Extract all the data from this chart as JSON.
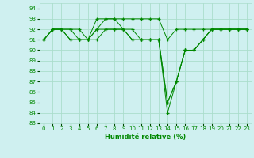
{
  "xlabel": "Humidité relative (%)",
  "bg_color": "#cff0f0",
  "grid_color": "#aaddcc",
  "line_color": "#008800",
  "xlim": [
    -0.5,
    23.5
  ],
  "ylim": [
    83,
    94.5
  ],
  "yticks": [
    83,
    84,
    85,
    86,
    87,
    88,
    89,
    90,
    91,
    92,
    93,
    94
  ],
  "xticks": [
    0,
    1,
    2,
    3,
    4,
    5,
    6,
    7,
    8,
    9,
    10,
    11,
    12,
    13,
    14,
    15,
    16,
    17,
    18,
    19,
    20,
    21,
    22,
    23
  ],
  "series": [
    [
      91,
      92,
      92,
      92,
      92,
      91,
      93,
      93,
      93,
      93,
      93,
      93,
      93,
      93,
      91,
      92,
      92,
      92,
      92,
      92,
      92,
      92,
      92,
      92
    ],
    [
      91,
      92,
      92,
      92,
      91,
      91,
      92,
      92,
      92,
      92,
      91,
      91,
      91,
      91,
      85,
      87,
      90,
      90,
      91,
      92,
      92,
      92,
      92,
      92
    ],
    [
      91,
      92,
      92,
      91,
      91,
      91,
      92,
      93,
      93,
      92,
      92,
      91,
      91,
      91,
      84,
      87,
      90,
      90,
      91,
      92,
      92,
      92,
      92,
      92
    ],
    [
      91,
      92,
      92,
      91,
      91,
      91,
      91,
      92,
      92,
      92,
      91,
      91,
      91,
      91,
      85,
      87,
      90,
      90,
      91,
      92,
      92,
      92,
      92,
      92
    ]
  ]
}
